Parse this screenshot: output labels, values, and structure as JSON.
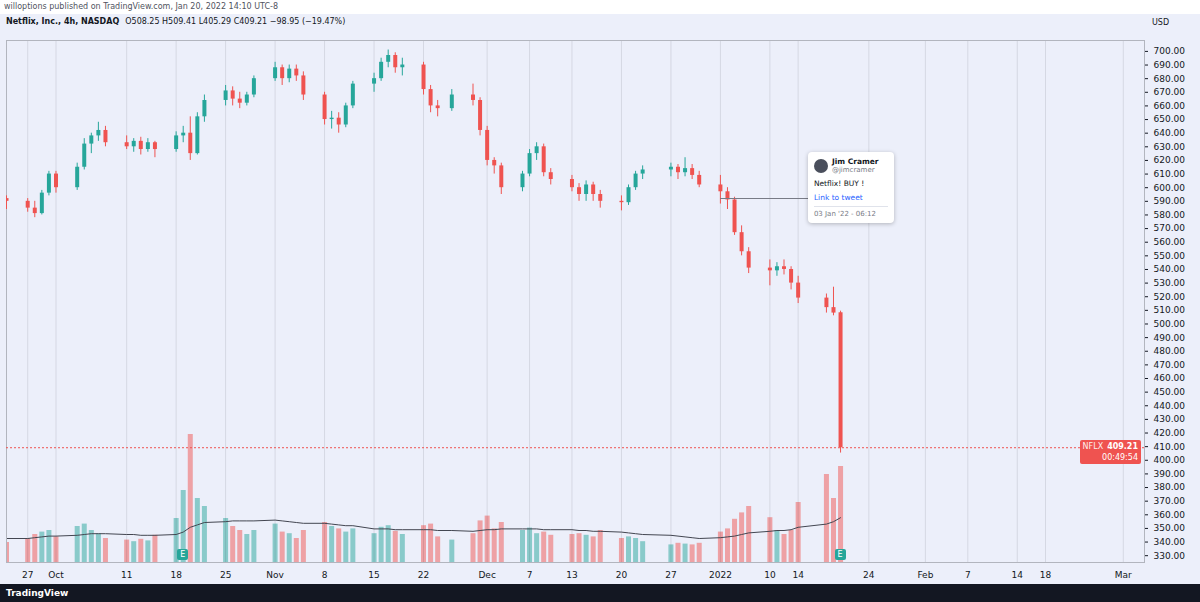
{
  "chart_data": {
    "type": "candlestick",
    "publisher": "willoptions published on TradingView.com, Jan 20, 2022 14:10 UTC-8",
    "title": "Netflix, Inc., 4h, NASDAQ",
    "subtitle": "O508.25 H509.41 L405.29 C409.21 −98.95 (−19.47%)",
    "y_unit": "USD",
    "footer": "TradingView",
    "color": {
      "up": "#26a69a",
      "down": "#ef5350"
    },
    "grid": true,
    "x": [
      "2021-09-24",
      "2021-09-27",
      "2021-09-28",
      "2021-09-29",
      "2021-09-30",
      "2021-10-01",
      "2021-10-04",
      "2021-10-05",
      "2021-10-06",
      "2021-10-07",
      "2021-10-08",
      "2021-10-11",
      "2021-10-12",
      "2021-10-13",
      "2021-10-14",
      "2021-10-15",
      "2021-10-18",
      "2021-10-19",
      "2021-10-20",
      "2021-10-21",
      "2021-10-22",
      "2021-10-25",
      "2021-10-26",
      "2021-10-27",
      "2021-10-28",
      "2021-10-29",
      "2021-11-01",
      "2021-11-02",
      "2021-11-03",
      "2021-11-04",
      "2021-11-05",
      "2021-11-08",
      "2021-11-09",
      "2021-11-10",
      "2021-11-11",
      "2021-11-12",
      "2021-11-15",
      "2021-11-16",
      "2021-11-17",
      "2021-11-18",
      "2021-11-19",
      "2021-11-22",
      "2021-11-23",
      "2021-11-24",
      "2021-11-26",
      "2021-11-29",
      "2021-11-30",
      "2021-12-01",
      "2021-12-02",
      "2021-12-03",
      "2021-12-06",
      "2021-12-07",
      "2021-12-08",
      "2021-12-09",
      "2021-12-10",
      "2021-12-13",
      "2021-12-14",
      "2021-12-15",
      "2021-12-16",
      "2021-12-17",
      "2021-12-20",
      "2021-12-21",
      "2021-12-22",
      "2021-12-23",
      "2021-12-27",
      "2021-12-28",
      "2021-12-29",
      "2021-12-30",
      "2021-12-31",
      "2022-01-03",
      "2022-01-04",
      "2022-01-05",
      "2022-01-06",
      "2022-01-07",
      "2022-01-10",
      "2022-01-11",
      "2022-01-12",
      "2022-01-13",
      "2022-01-14",
      "2022-01-18",
      "2022-01-19",
      "2022-01-20"
    ],
    "open": [
      592,
      590,
      585,
      581,
      596,
      610,
      600,
      615,
      632,
      638,
      642,
      633,
      630,
      634,
      628,
      633,
      628,
      638,
      640,
      625,
      652,
      664,
      671,
      665,
      662,
      668,
      680,
      688,
      680,
      687,
      682,
      668,
      650,
      651,
      646,
      660,
      676,
      680,
      692,
      697,
      688,
      690,
      672,
      660,
      658,
      668,
      664,
      642,
      620,
      616,
      600,
      610,
      625,
      630,
      611,
      606,
      600,
      595,
      602,
      595,
      590,
      589,
      600,
      610,
      613,
      615,
      611,
      614,
      609,
      602,
      597,
      591,
      567,
      553,
      541,
      539,
      542,
      540,
      530,
      519,
      512,
      508.25
    ],
    "high": [
      594,
      592,
      590,
      598,
      612,
      612,
      618,
      636,
      640,
      648,
      645,
      638,
      636,
      637,
      636,
      634,
      641,
      645,
      652,
      655,
      668,
      675,
      674,
      670,
      670,
      682,
      692,
      690,
      690,
      690,
      685,
      670,
      656,
      655,
      662,
      678,
      684,
      695,
      701,
      699,
      695,
      692,
      675,
      664,
      672,
      676,
      666,
      645,
      622,
      618,
      612,
      628,
      633,
      632,
      614,
      609,
      603,
      605,
      604,
      598,
      594,
      602,
      612,
      616,
      618,
      617,
      622,
      617,
      612,
      609,
      600,
      593,
      572,
      556,
      547,
      545,
      547,
      542,
      535,
      522,
      527,
      509.41
    ],
    "low": [
      584,
      582,
      578,
      580,
      594,
      596,
      598,
      613,
      625,
      634,
      630,
      628,
      626,
      624,
      626,
      622,
      626,
      633,
      620,
      624,
      648,
      660,
      660,
      658,
      660,
      666,
      678,
      675,
      677,
      678,
      664,
      646,
      643,
      640,
      644,
      658,
      670,
      678,
      688,
      684,
      682,
      668,
      655,
      652,
      656,
      660,
      638,
      616,
      610,
      595,
      597,
      608,
      620,
      608,
      602,
      597,
      590,
      590,
      590,
      585,
      583,
      587,
      598,
      606,
      608,
      606,
      608,
      606,
      600,
      588,
      584,
      565,
      550,
      537,
      528,
      535,
      536,
      525,
      515,
      508,
      506,
      405.29
    ],
    "close": [
      590,
      585,
      581,
      596,
      610,
      600,
      615,
      632,
      638,
      642,
      633,
      630,
      634,
      628,
      633,
      628,
      638,
      640,
      625,
      652,
      664,
      671,
      665,
      662,
      668,
      680,
      688,
      680,
      687,
      682,
      668,
      650,
      651,
      646,
      660,
      676,
      680,
      692,
      697,
      688,
      690,
      672,
      660,
      658,
      668,
      664,
      642,
      620,
      616,
      600,
      610,
      625,
      630,
      611,
      606,
      600,
      595,
      602,
      595,
      590,
      589,
      600,
      610,
      613,
      615,
      611,
      614,
      609,
      602,
      597,
      591,
      567,
      553,
      541,
      539,
      542,
      540,
      530,
      519,
      512,
      508,
      409.21
    ],
    "volume": [
      2500000,
      3000000,
      3500000,
      3800000,
      4000000,
      3200000,
      4500000,
      4800000,
      4000000,
      3600000,
      3000000,
      2800000,
      2600000,
      2900000,
      2700000,
      3400000,
      5500000,
      9000000,
      16000000,
      8000000,
      7000000,
      5500000,
      4500000,
      4000000,
      3500000,
      4000000,
      4800000,
      3800000,
      3600000,
      3000000,
      4000000,
      5000000,
      4500000,
      4200000,
      3800000,
      4200000,
      3600000,
      4400000,
      4600000,
      3900000,
      3500000,
      4600000,
      4800000,
      3200000,
      2800000,
      3600000,
      5200000,
      5800000,
      4200000,
      5000000,
      4000000,
      4300000,
      3600000,
      3800000,
      3400000,
      3500000,
      3600000,
      3400000,
      3200000,
      4000000,
      3000000,
      3200000,
      3000000,
      2600000,
      2200000,
      2400000,
      2300000,
      2200000,
      2400000,
      3800000,
      4200000,
      5400000,
      6200000,
      7000000,
      5600000,
      4000000,
      3500000,
      4000000,
      7500000,
      11000000,
      8000000,
      12000000
    ],
    "volume_ma": [
      3000000,
      3000000,
      3100000,
      3200000,
      3300000,
      3300000,
      3400000,
      3500000,
      3600000,
      3600000,
      3600000,
      3500000,
      3500000,
      3400000,
      3400000,
      3400000,
      3500000,
      3800000,
      4400000,
      4700000,
      5000000,
      5100000,
      5200000,
      5200000,
      5200000,
      5200000,
      5300000,
      5200000,
      5100000,
      5000000,
      4900000,
      4900000,
      4800000,
      4700000,
      4600000,
      4600000,
      4200000,
      4200000,
      4200000,
      4100000,
      4100000,
      4100000,
      4100000,
      4000000,
      4000000,
      3900000,
      4000000,
      4100000,
      4100000,
      4200000,
      4200000,
      4200000,
      4200000,
      4100000,
      4100000,
      4100000,
      4000000,
      4000000,
      3900000,
      3900000,
      3800000,
      3700000,
      3600000,
      3500000,
      3400000,
      3300000,
      3200000,
      3100000,
      3000000,
      3100000,
      3200000,
      3300000,
      3500000,
      3700000,
      3900000,
      4000000,
      4000000,
      4100000,
      4400000,
      4800000,
      5100000,
      5600000
    ],
    "volume_lim": [
      0,
      20000000
    ],
    "xlim": [
      "2021-09-24",
      "2022-03-04"
    ],
    "xticks": [
      {
        "value": "2021-09-27",
        "label": "27"
      },
      {
        "value": "2021-10-01",
        "label": "Oct"
      },
      {
        "value": "2021-10-11",
        "label": "11"
      },
      {
        "value": "2021-10-18",
        "label": "18"
      },
      {
        "value": "2021-10-25",
        "label": "25"
      },
      {
        "value": "2021-11-01",
        "label": "Nov"
      },
      {
        "value": "2021-11-08",
        "label": "8"
      },
      {
        "value": "2021-11-15",
        "label": "15"
      },
      {
        "value": "2021-11-22",
        "label": "22"
      },
      {
        "value": "2021-12-01",
        "label": "Dec"
      },
      {
        "value": "2021-12-07",
        "label": "7"
      },
      {
        "value": "2021-12-13",
        "label": "13"
      },
      {
        "value": "2021-12-20",
        "label": "20"
      },
      {
        "value": "2021-12-27",
        "label": "27"
      },
      {
        "value": "2022-01-03",
        "label": "2022"
      },
      {
        "value": "2022-01-10",
        "label": "10"
      },
      {
        "value": "2022-01-14",
        "label": "14"
      },
      {
        "value": "2022-01-24",
        "label": "24"
      },
      {
        "value": "2022-02-01",
        "label": "Feb"
      },
      {
        "value": "2022-02-07",
        "label": "7"
      },
      {
        "value": "2022-02-14",
        "label": "14"
      },
      {
        "value": "2022-02-18",
        "label": "18"
      },
      {
        "value": "2022-03-01",
        "label": "Mar"
      }
    ],
    "ylim": [
      325,
      708
    ],
    "yticks": [
      {
        "value": 330,
        "label": "330.00"
      },
      {
        "value": 340,
        "label": "340.00"
      },
      {
        "value": 350,
        "label": "350.00"
      },
      {
        "value": 360,
        "label": "360.00"
      },
      {
        "value": 370,
        "label": "370.00"
      },
      {
        "value": 380,
        "label": "380.00"
      },
      {
        "value": 390,
        "label": "390.00"
      },
      {
        "value": 400,
        "label": "400.00"
      },
      {
        "value": 410,
        "label": "410.00"
      },
      {
        "value": 420,
        "label": "420.00"
      },
      {
        "value": 430,
        "label": "430.00"
      },
      {
        "value": 440,
        "label": "440.00"
      },
      {
        "value": 450,
        "label": "450.00"
      },
      {
        "value": 460,
        "label": "460.00"
      },
      {
        "value": 470,
        "label": "470.00"
      },
      {
        "value": 480,
        "label": "480.00"
      },
      {
        "value": 490,
        "label": "490.00"
      },
      {
        "value": 500,
        "label": "500.00"
      },
      {
        "value": 510,
        "label": "510.00"
      },
      {
        "value": 520,
        "label": "520.00"
      },
      {
        "value": 530,
        "label": "530.00"
      },
      {
        "value": 540,
        "label": "540.00"
      },
      {
        "value": 550,
        "label": "550.00"
      },
      {
        "value": 560,
        "label": "560.00"
      },
      {
        "value": 570,
        "label": "570.00"
      },
      {
        "value": 580,
        "label": "580.00"
      },
      {
        "value": 590,
        "label": "590.00"
      },
      {
        "value": 600,
        "label": "600.00"
      },
      {
        "value": 610,
        "label": "610.00"
      },
      {
        "value": 620,
        "label": "620.00"
      },
      {
        "value": 630,
        "label": "630.00"
      },
      {
        "value": 640,
        "label": "640.00"
      },
      {
        "value": 650,
        "label": "650.00"
      },
      {
        "value": 660,
        "label": "660.00"
      },
      {
        "value": 670,
        "label": "670.00"
      },
      {
        "value": 680,
        "label": "680.00"
      },
      {
        "value": 690,
        "label": "690.00"
      },
      {
        "value": 700,
        "label": "700.00"
      }
    ],
    "last_price": {
      "value": 409.21,
      "label": "409.21",
      "symbol": "NFLX",
      "countdown": "00:49:54"
    },
    "events": [
      {
        "x": "2021-10-19",
        "label": "E"
      },
      {
        "x": "2022-01-20",
        "label": "E"
      }
    ],
    "annotation": {
      "x": "2022-01-03",
      "y": 592,
      "author": "Jim Cramer",
      "handle": "@jimcramer",
      "text": "Netflix! BUY !",
      "link": "Link to tweet",
      "time": "03 Jan '22 - 06:12"
    }
  }
}
